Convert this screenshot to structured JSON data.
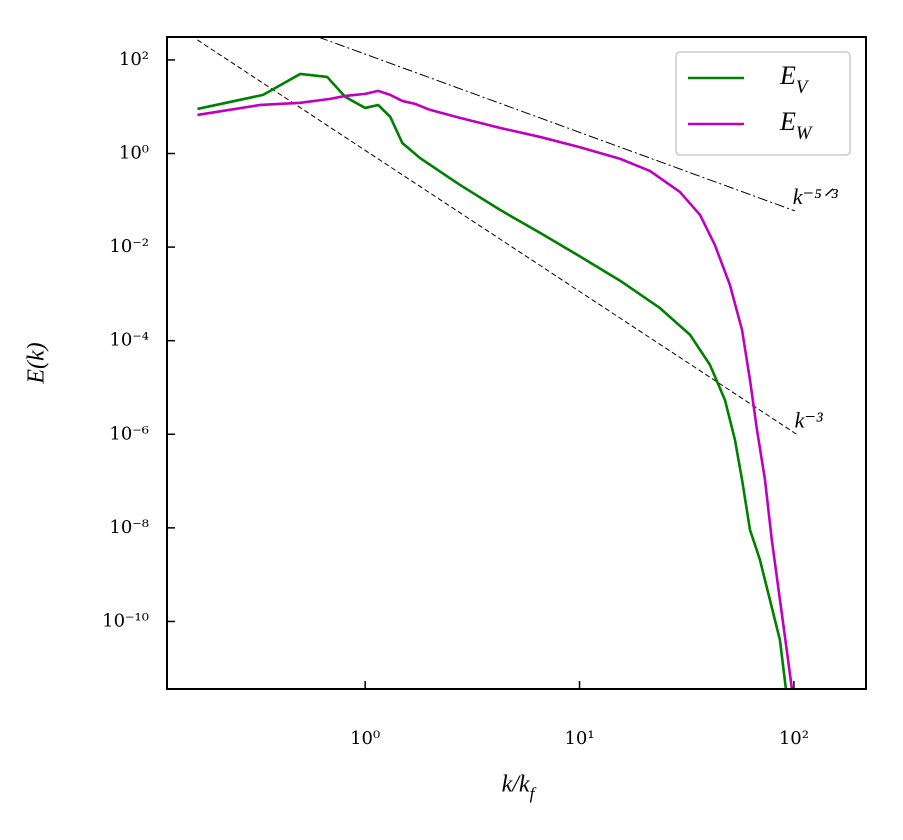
{
  "chart_data": {
    "type": "line",
    "xlabel": "k/k_f",
    "ylabel": "E(k)",
    "log_x": true,
    "log_y": true,
    "legend": "upper right",
    "xlim": [
      0.119,
      217
    ],
    "ylim": [
      3.6e-12,
      309
    ],
    "xticks": [
      {
        "value": 1,
        "label": "10⁰"
      },
      {
        "value": 10,
        "label": "10¹"
      },
      {
        "value": 100,
        "label": "10²"
      }
    ],
    "yticks": [
      {
        "value": 1e-10,
        "label": "10⁻¹⁰"
      },
      {
        "value": 1e-08,
        "label": "10⁻⁸"
      },
      {
        "value": 1e-06,
        "label": "10⁻⁶"
      },
      {
        "value": 0.0001,
        "label": "10⁻⁴"
      },
      {
        "value": 0.01,
        "label": "10⁻²"
      },
      {
        "value": 1,
        "label": "10⁰"
      },
      {
        "value": 100,
        "label": "10²"
      }
    ],
    "series": [
      {
        "name": "E_V",
        "color": "#008000",
        "x": [
          0.165,
          0.334,
          0.498,
          0.665,
          0.807,
          1.0,
          1.15,
          1.31,
          1.49,
          1.8,
          2.77,
          4.26,
          6.55,
          9.95,
          15.5,
          23.7,
          32.8,
          40.6,
          47.7,
          53.1,
          57.3,
          62.4,
          69.4,
          77.3,
          86.1,
          91.8
        ],
        "values": [
          8.97,
          17.9,
          50.2,
          43.3,
          16.2,
          9.42,
          10.9,
          6.05,
          1.68,
          0.805,
          0.213,
          0.0624,
          0.0201,
          0.00648,
          0.0019,
          0.0005,
          0.000133,
          3.04e-05,
          5.4e-06,
          7.6e-07,
          1.07e-07,
          9.1e-09,
          2.1e-09,
          2.9e-10,
          4e-11,
          3.6e-12
        ]
      },
      {
        "name": "E_W",
        "color": "#bf00bf",
        "x": [
          0.165,
          0.324,
          0.498,
          0.687,
          0.807,
          1.0,
          1.15,
          1.31,
          1.49,
          1.71,
          2.01,
          2.77,
          4.26,
          6.55,
          9.95,
          15.5,
          21.3,
          29.4,
          36.5,
          42.8,
          50.3,
          57.3,
          62.4,
          67.3,
          73.3,
          78.9,
          86.1,
          92.7,
          97.9
        ],
        "values": [
          6.68,
          10.9,
          12.1,
          14.7,
          17.0,
          18.8,
          21.8,
          17.9,
          13.3,
          11.5,
          8.55,
          5.77,
          3.52,
          2.26,
          1.38,
          0.768,
          0.425,
          0.151,
          0.0487,
          0.0111,
          0.00156,
          0.00017,
          1.45e-05,
          1.24e-06,
          1.07e-07,
          5.5e-09,
          2.9e-10,
          2.4e-11,
          3.6e-12
        ]
      }
    ],
    "guides": [
      {
        "label": "k⁻⁵ᐟ³",
        "dash": "dashdot",
        "x": [
          0.604,
          101
        ],
        "values": [
          309,
          0.0594
        ]
      },
      {
        "label": "k⁻³",
        "dash": "dashed",
        "x": [
          0.165,
          103
        ],
        "values": [
          267,
          1e-06
        ]
      }
    ]
  }
}
